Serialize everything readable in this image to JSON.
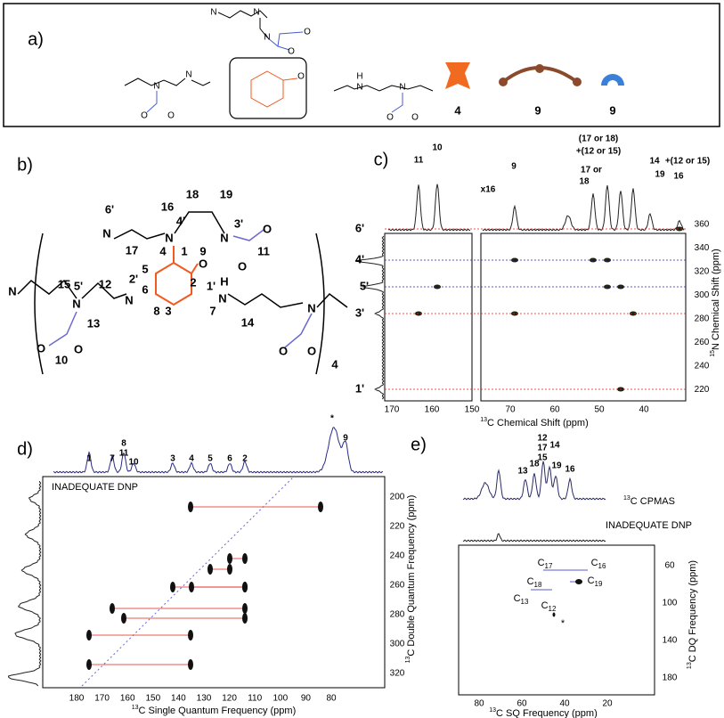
{
  "panel_a": {
    "label": "a)",
    "atoms": [
      "N",
      "N",
      "N",
      "O",
      "O",
      "N",
      "N",
      "O",
      "O",
      "O",
      "H",
      "N",
      "N",
      "O",
      "O"
    ],
    "counts": [
      "4",
      "9",
      "9"
    ]
  },
  "panel_b": {
    "label": "b)",
    "atoms": [
      "6'",
      "N",
      "16",
      "18",
      "19",
      "4'",
      "N",
      "N",
      "3'",
      "17",
      "9",
      "11",
      "O",
      "O",
      "4",
      "1",
      "O",
      "5",
      "2",
      "6",
      "2'",
      "N",
      "15",
      "12",
      "5'",
      "N",
      "N",
      "1'",
      "H",
      "N",
      "13",
      "8",
      "3",
      "7",
      "14",
      "N",
      "10",
      "O",
      "O",
      "O",
      "O",
      "4"
    ]
  },
  "panel_c": {
    "label": "c)",
    "peak_labels": [
      "11",
      "10",
      "9",
      "(17 or 18)",
      "+(12 or 15)",
      "17 or",
      "18",
      "14",
      "+(12 or 15)",
      "19",
      "16",
      "x16"
    ],
    "projection_labels": [
      "6'",
      "4'",
      "5'",
      "3'",
      "1'"
    ],
    "y_ticks": [
      360,
      340,
      320,
      300,
      280,
      260,
      240,
      220
    ],
    "x_ticks_left": [
      170,
      160,
      150
    ],
    "x_ticks_right": [
      70,
      60,
      50,
      40
    ],
    "x_title": {
      "sup": "13",
      "text": "C Chemical Shift (ppm)"
    },
    "y_title": {
      "sup": "15",
      "text": "N Chemical Shift (ppm)"
    }
  },
  "panel_d": {
    "label": "d)",
    "peak_labels": [
      "1",
      "7",
      "8",
      "11",
      "10",
      "3",
      "4",
      "5",
      "6",
      "2",
      "*",
      "9"
    ],
    "plot_title": "INADEQUATE DNP",
    "y_ticks": [
      200,
      220,
      240,
      260,
      280,
      300,
      320
    ],
    "x_ticks": [
      180,
      170,
      160,
      150,
      140,
      130,
      120,
      110,
      100,
      90,
      80
    ],
    "x_title": {
      "sup": "13",
      "text": "C Single Quantum Frequency (ppm)"
    },
    "y_title": {
      "sup": "13",
      "text": "C Double Quantum Frequency (ppm)"
    }
  },
  "panel_e": {
    "label": "e)",
    "peak_labels": [
      "12",
      "17",
      "15",
      "14",
      "18",
      "13",
      "19",
      "16"
    ],
    "spectrum_label": {
      "sup": "13",
      "text": "C CPMAS"
    },
    "trace_label": "INADEQUATE DNP",
    "cross_peak_labels": [
      {
        "base": "C",
        "sub": "17"
      },
      {
        "base": "C",
        "sub": "16"
      },
      {
        "base": "C",
        "sub": "18"
      },
      {
        "base": "C",
        "sub": "19"
      },
      {
        "base": "C",
        "sub": "13"
      },
      {
        "base": "C",
        "sub": "12"
      }
    ],
    "asterisk": "*",
    "y_ticks": [
      60,
      100,
      140,
      180
    ],
    "x_ticks": [
      80,
      60,
      40,
      20
    ],
    "x_title": {
      "sup": "13",
      "text": "C SQ Frequency (ppm)"
    },
    "y_title": {
      "sup": "13",
      "text": "C DQ Frequency (ppm)"
    }
  }
}
